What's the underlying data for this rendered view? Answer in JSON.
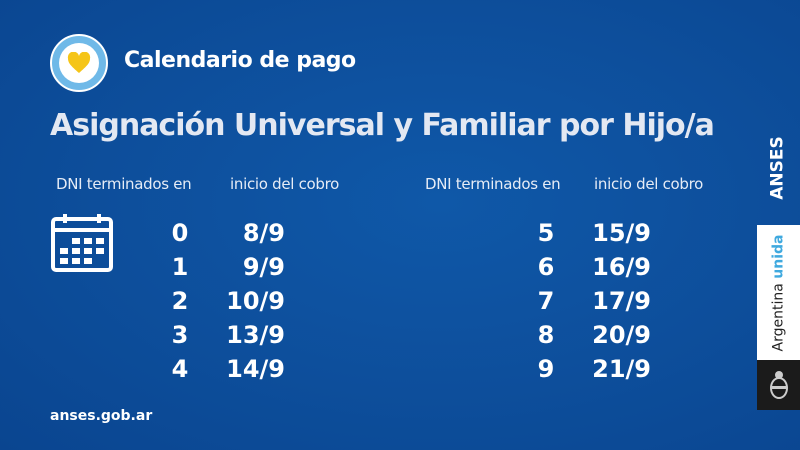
{
  "header": {
    "subtitle": "Calendario de pago",
    "title": "Asignación Universal y Familiar por Hijo/a"
  },
  "columns": {
    "dni": "DNI terminados en",
    "date": "inicio del cobro"
  },
  "left_rows": [
    {
      "dni": "0",
      "date": "8/9"
    },
    {
      "dni": "1",
      "date": "9/9"
    },
    {
      "dni": "2",
      "date": "10/9"
    },
    {
      "dni": "3",
      "date": "13/9"
    },
    {
      "dni": "4",
      "date": "14/9"
    }
  ],
  "right_rows": [
    {
      "dni": "5",
      "date": "15/9"
    },
    {
      "dni": "6",
      "date": "16/9"
    },
    {
      "dni": "7",
      "date": "17/9"
    },
    {
      "dni": "8",
      "date": "20/9"
    },
    {
      "dni": "9",
      "date": "21/9"
    }
  ],
  "footer": {
    "url": "anses.gob.ar"
  },
  "brand": {
    "anses": "ANSES",
    "argentina": "Argentina",
    "unida": "unida"
  },
  "colors": {
    "background": "#0d4e9b",
    "heart": "#f5c518",
    "logo_ring": "#6fb9e8",
    "unida": "#3fa9df"
  },
  "icons": [
    "heart-icon",
    "calendar-icon",
    "coat-of-arms-icon"
  ]
}
